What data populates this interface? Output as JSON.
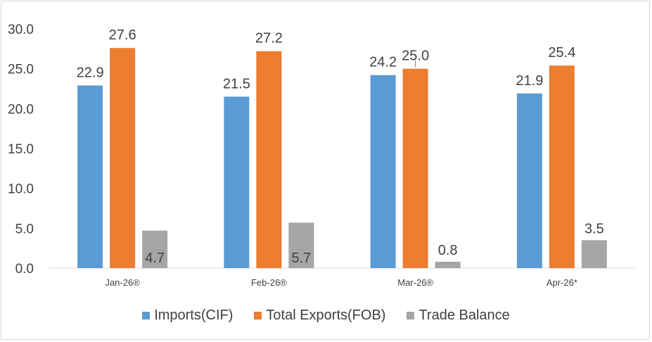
{
  "chart_data": {
    "type": "bar",
    "categories": [
      "Jan-26®",
      "Feb-26®",
      "Mar-26®",
      "Apr-26*"
    ],
    "series": [
      {
        "name": "Imports(CIF)",
        "color": "#5b9bd5",
        "values": [
          22.9,
          21.5,
          24.2,
          21.9
        ],
        "labels": [
          "22.9",
          "21.5",
          "24.2",
          "21.9"
        ]
      },
      {
        "name": "Total Exports(FOB)",
        "color": "#ed7d31",
        "values": [
          27.6,
          27.2,
          25.0,
          25.4
        ],
        "labels": [
          "27.6",
          "27.2",
          "25.0",
          "25.4"
        ]
      },
      {
        "name": "Trade Balance",
        "color": "#a5a5a5",
        "values": [
          4.7,
          5.7,
          0.8,
          3.5
        ],
        "labels": [
          "4.7",
          "5.7",
          "0.8",
          "3.5"
        ]
      }
    ],
    "yticks": [
      "0.0",
      "5.0",
      "10.0",
      "15.0",
      "20.0",
      "25.0",
      "30.0"
    ],
    "ylim": [
      0,
      30
    ],
    "grid": false,
    "legend_position": "bottom"
  }
}
